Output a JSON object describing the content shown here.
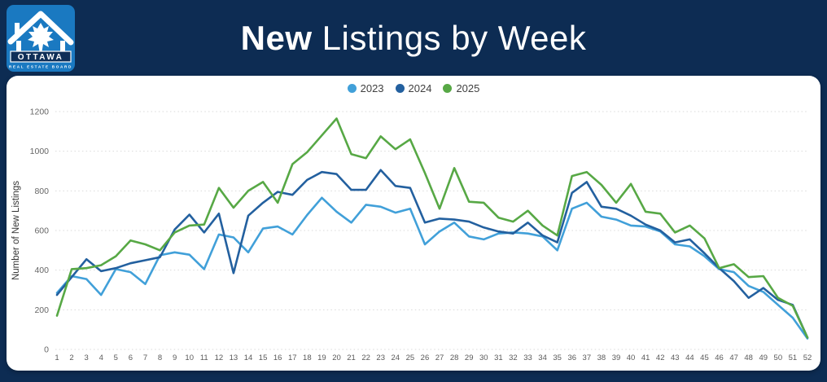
{
  "header": {
    "title_bold": "New",
    "title_rest": " Listings by Week"
  },
  "logo": {
    "org": "OTTAWA",
    "org_sub": "REAL ESTATE BOARD"
  },
  "colors": {
    "background": "#0d2c53",
    "card": "#ffffff",
    "grid": "#d9d9d9",
    "tick_text": "#666666",
    "axis_label": "#333333",
    "legend_text": "#404040",
    "logo_blue": "#1a79c1",
    "logo_band": "#0f2f58"
  },
  "chart_data": {
    "type": "line",
    "title": "New Listings by Week",
    "xlabel": "",
    "ylabel": "Number of New Listings",
    "ylim": [
      0,
      1200
    ],
    "ytick_step": 200,
    "yticks": [
      0,
      200,
      400,
      600,
      800,
      1000,
      1200
    ],
    "grid": "dotted-horizontal",
    "legend_position": "top-center",
    "x": [
      1,
      2,
      3,
      4,
      5,
      6,
      7,
      8,
      9,
      10,
      11,
      12,
      13,
      14,
      15,
      16,
      17,
      18,
      19,
      20,
      21,
      22,
      23,
      24,
      25,
      26,
      27,
      28,
      29,
      30,
      31,
      32,
      33,
      34,
      35,
      36,
      37,
      38,
      39,
      40,
      41,
      42,
      43,
      44,
      45,
      46,
      47,
      48,
      49,
      50,
      51,
      52
    ],
    "series": [
      {
        "name": "2023",
        "color": "#41a0d9",
        "values": [
          285,
          370,
          355,
          275,
          405,
          390,
          330,
          475,
          490,
          478,
          405,
          580,
          565,
          490,
          610,
          620,
          580,
          678,
          765,
          695,
          640,
          730,
          720,
          690,
          710,
          530,
          595,
          640,
          570,
          555,
          585,
          590,
          585,
          570,
          500,
          710,
          740,
          670,
          655,
          625,
          620,
          595,
          530,
          520,
          470,
          405,
          390,
          320,
          290,
          225,
          160,
          55
        ]
      },
      {
        "name": "2024",
        "color": "#23609f",
        "values": [
          275,
          365,
          455,
          395,
          410,
          435,
          450,
          465,
          605,
          680,
          590,
          685,
          385,
          675,
          740,
          795,
          780,
          855,
          895,
          885,
          805,
          805,
          905,
          825,
          815,
          640,
          660,
          655,
          645,
          615,
          595,
          585,
          640,
          575,
          540,
          790,
          845,
          720,
          710,
          675,
          630,
          600,
          540,
          555,
          485,
          410,
          345,
          260,
          310,
          250,
          225,
          60
        ]
      },
      {
        "name": "2025",
        "color": "#57a845",
        "values": [
          170,
          405,
          410,
          425,
          470,
          550,
          530,
          500,
          590,
          625,
          630,
          815,
          715,
          800,
          845,
          740,
          935,
          995,
          1080,
          1165,
          985,
          965,
          1075,
          1010,
          1060,
          890,
          710,
          915,
          745,
          740,
          665,
          645,
          700,
          625,
          575,
          875,
          895,
          830,
          740,
          835,
          695,
          685,
          590,
          625,
          560,
          410,
          430,
          365,
          370,
          260,
          220,
          60
        ]
      }
    ]
  }
}
